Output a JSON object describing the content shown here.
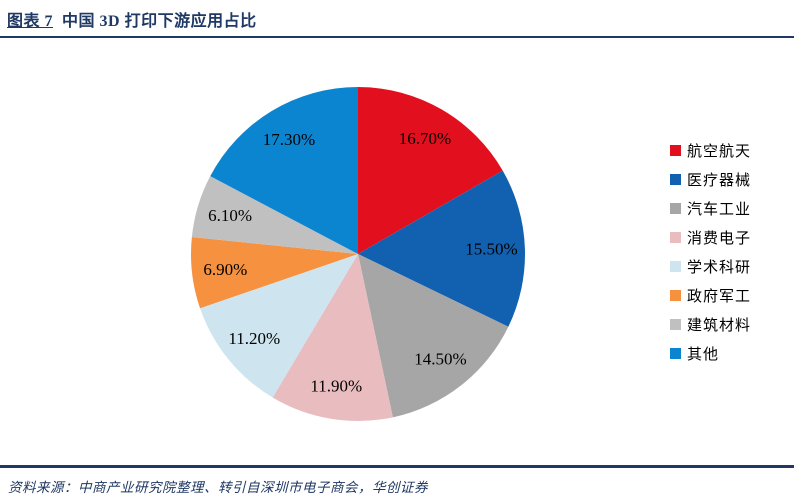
{
  "header": {
    "figure_label": "图表 7",
    "title": "中国 3D 打印下游应用占比"
  },
  "chart_data": {
    "type": "pie",
    "title": "中国 3D 打印下游应用占比",
    "start_angle_deg": -90,
    "direction": "clockwise",
    "label_radius_ratio": 0.8,
    "legend_position": "right",
    "categories": [
      "航空航天",
      "医疗器械",
      "汽车工业",
      "消费电子",
      "学术科研",
      "政府军工",
      "建筑材料",
      "其他"
    ],
    "values": [
      16.7,
      15.5,
      14.5,
      11.9,
      11.2,
      6.9,
      6.1,
      17.3
    ],
    "segments": [
      {
        "label": "航空航天",
        "value": 16.7,
        "display": "16.70%",
        "color": "#E2101E"
      },
      {
        "label": "医疗器械",
        "value": 15.5,
        "display": "15.50%",
        "color": "#1261B1"
      },
      {
        "label": "汽车工业",
        "value": 14.5,
        "display": "14.50%",
        "color": "#A6A6A6"
      },
      {
        "label": "消费电子",
        "value": 11.9,
        "display": "11.90%",
        "color": "#E9BDC0"
      },
      {
        "label": "学术科研",
        "value": 11.2,
        "display": "11.20%",
        "color": "#CEE5F0"
      },
      {
        "label": "政府军工",
        "value": 6.9,
        "display": "6.90%",
        "color": "#F6913F"
      },
      {
        "label": "建筑材料",
        "value": 6.1,
        "display": "6.10%",
        "color": "#C0C0C0"
      },
      {
        "label": "其他",
        "value": 17.3,
        "display": "17.30%",
        "color": "#0C85D0"
      }
    ]
  },
  "footer": {
    "source_label": "资料来源：",
    "source_text": "中商产业研究院整理、转引自深圳市电子商会，华创证券"
  },
  "colors": {
    "accent_navy": "#1F3864"
  }
}
